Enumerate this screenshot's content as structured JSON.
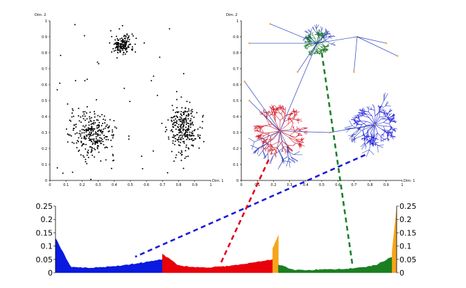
{
  "chart_data": [
    {
      "type": "scatter",
      "panel": "top-left",
      "xlabel": "Dim. 1",
      "ylabel": "Dim. 2",
      "xlim": [
        0,
        1
      ],
      "ylim": [
        0,
        1
      ],
      "xticks": [
        "0",
        "0.1",
        "0.2",
        "0.3",
        "0.4",
        "0.5",
        "0.6",
        "0.7",
        "0.8",
        "0.9",
        "1"
      ],
      "yticks": [
        "0",
        "0.1",
        "0.2",
        "0.3",
        "0.4",
        "0.5",
        "0.6",
        "0.7",
        "0.8",
        "0.9",
        "1"
      ],
      "point_color": "#000000",
      "clusters": [
        {
          "cx": 0.45,
          "cy": 0.85,
          "sx": 0.035,
          "sy": 0.03,
          "n": 160
        },
        {
          "cx": 0.27,
          "cy": 0.29,
          "sx": 0.07,
          "sy": 0.07,
          "n": 280
        },
        {
          "cx": 0.83,
          "cy": 0.33,
          "sx": 0.045,
          "sy": 0.08,
          "n": 260
        }
      ],
      "noise_points": 45
    },
    {
      "type": "tree",
      "panel": "top-right",
      "xlabel": "Dim. 1",
      "ylabel": "Dim. 2",
      "xlim": [
        0,
        1
      ],
      "ylim": [
        0,
        1
      ],
      "xticks": [
        "0",
        "0.1",
        "0.2",
        "0.3",
        "0.4",
        "0.5",
        "0.6",
        "0.7",
        "0.8",
        "0.9",
        "1"
      ],
      "yticks": [
        "0",
        "0.1",
        "0.2",
        "0.3",
        "0.4",
        "0.5",
        "0.6",
        "0.7",
        "0.8",
        "0.9",
        "1"
      ],
      "edge_color": "#2a3fbf",
      "leaf_color": "#f4a742",
      "clusters": [
        {
          "name": "green",
          "color": "#1e7a2a",
          "cx": 0.47,
          "cy": 0.86,
          "r": 0.06
        },
        {
          "name": "red",
          "color": "#d11a2a",
          "cx": 0.24,
          "cy": 0.31,
          "r": 0.12
        },
        {
          "name": "blue",
          "color": "#1a1adb",
          "cx": 0.83,
          "cy": 0.35,
          "r": 0.1
        }
      ]
    },
    {
      "type": "area",
      "panel": "bottom",
      "ylim": [
        0,
        0.25
      ],
      "yticks": [
        "0",
        "0.05",
        "0.1",
        "0.15",
        "0.2",
        "0.25"
      ],
      "segments": [
        {
          "name": "blue",
          "color": "#0a1adf",
          "x": [
            0,
            0.47
          ],
          "profile": [
            0.13,
            0.02,
            0.018,
            0.02,
            0.025,
            0.032,
            0.04,
            0.05
          ]
        },
        {
          "name": "red",
          "color": "#e8000b",
          "x": [
            0.47,
            0.955
          ],
          "profile": [
            0.07,
            0.028,
            0.02,
            0.02,
            0.024,
            0.03,
            0.04,
            0.05
          ]
        },
        {
          "name": "orange",
          "color": "#f5a51a",
          "x": [
            0.955,
            0.98
          ],
          "profile": [
            0.09,
            0.14
          ]
        },
        {
          "name": "green",
          "color": "#1b7f22",
          "x": [
            0.98,
            1.48
          ],
          "profile": [
            0.03,
            0.01,
            0.01,
            0.012,
            0.014,
            0.018,
            0.028,
            0.06
          ]
        },
        {
          "name": "orange",
          "color": "#f5a51a",
          "x": [
            1.48,
            1.5
          ],
          "profile": [
            0.08,
            0.24
          ]
        }
      ]
    }
  ],
  "connectors": [
    {
      "name": "blue",
      "color": "#1a1adb",
      "dash": "dashed"
    },
    {
      "name": "red",
      "color": "#e3001b",
      "dash": "dashed"
    },
    {
      "name": "green",
      "color": "#1a7f2a",
      "dash": "dashed"
    }
  ]
}
